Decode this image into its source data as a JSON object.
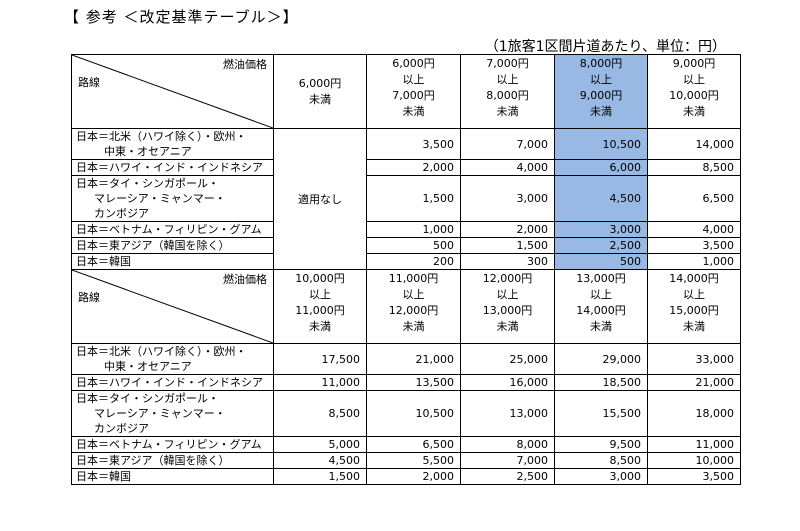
{
  "title": "【 参考 ＜改定基準テーブル＞】",
  "unit_note": "（1旅客1区間片道あたり、単位：円）",
  "corner": {
    "top": "燃油価格",
    "bottom": "路線"
  },
  "table1": {
    "headers": [
      [
        "6,000円",
        "未満"
      ],
      [
        "6,000円",
        "以上",
        "7,000円",
        "未満"
      ],
      [
        "7,000円",
        "以上",
        "8,000円",
        "未満"
      ],
      [
        "8,000円",
        "以上",
        "9,000円",
        "未満"
      ],
      [
        "9,000円",
        "以上",
        "10,000円",
        "未満"
      ]
    ],
    "not_applicable": "適用なし",
    "rows": [
      {
        "route": [
          "日本＝北米（ハワイ除く）・欧州・",
          "中東・オセアニア"
        ],
        "values": [
          "3,500",
          "7,000",
          "10,500",
          "14,000"
        ]
      },
      {
        "route": [
          "日本＝ハワイ・インド・インドネシア"
        ],
        "values": [
          "2,000",
          "4,000",
          "6,000",
          "8,500"
        ]
      },
      {
        "route": [
          "日本＝タイ・シンガポール・",
          "マレーシア・ミャンマー・",
          "カンボジア"
        ],
        "values": [
          "1,500",
          "3,000",
          "4,500",
          "6,500"
        ]
      },
      {
        "route": [
          "日本＝ベトナム・フィリピン・グアム"
        ],
        "values": [
          "1,000",
          "2,000",
          "3,000",
          "4,000"
        ]
      },
      {
        "route": [
          "日本＝東アジア（韓国を除く）"
        ],
        "values": [
          "500",
          "1,500",
          "2,500",
          "3,500"
        ]
      },
      {
        "route": [
          "日本＝韓国"
        ],
        "values": [
          "200",
          "300",
          "500",
          "1,000"
        ]
      }
    ]
  },
  "table2": {
    "headers": [
      [
        "10,000円",
        "以上",
        "11,000円",
        "未満"
      ],
      [
        "11,000円",
        "以上",
        "12,000円",
        "未満"
      ],
      [
        "12,000円",
        "以上",
        "13,000円",
        "未満"
      ],
      [
        "13,000円",
        "以上",
        "14,000円",
        "未満"
      ],
      [
        "14,000円",
        "以上",
        "15,000円",
        "未満"
      ]
    ],
    "rows": [
      {
        "route": [
          "日本＝北米（ハワイ除く）・欧州・",
          "中東・オセアニア"
        ],
        "values": [
          "17,500",
          "21,000",
          "25,000",
          "29,000",
          "33,000"
        ]
      },
      {
        "route": [
          "日本＝ハワイ・インド・インドネシア"
        ],
        "values": [
          "11,000",
          "13,500",
          "16,000",
          "18,500",
          "21,000"
        ]
      },
      {
        "route": [
          "日本＝タイ・シンガポール・",
          "マレーシア・ミャンマー・",
          "カンボジア"
        ],
        "values": [
          "8,500",
          "10,500",
          "13,000",
          "15,500",
          "18,000"
        ]
      },
      {
        "route": [
          "日本＝ベトナム・フィリピン・グアム"
        ],
        "values": [
          "5,000",
          "6,500",
          "8,000",
          "9,500",
          "11,000"
        ]
      },
      {
        "route": [
          "日本＝東アジア（韓国を除く）"
        ],
        "values": [
          "4,500",
          "5,500",
          "7,000",
          "8,500",
          "10,000"
        ]
      },
      {
        "route": [
          "日本＝韓国"
        ],
        "values": [
          "1,500",
          "2,000",
          "2,500",
          "3,000",
          "3,500"
        ]
      }
    ]
  },
  "highlight_color": "#97b9e4"
}
